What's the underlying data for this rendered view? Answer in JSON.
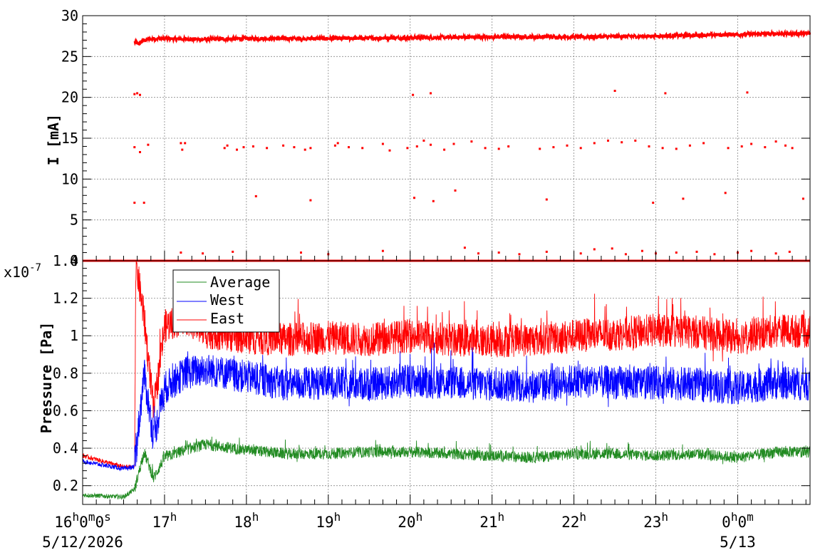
{
  "chart_data": [
    {
      "type": "scatter",
      "panel": "top",
      "title": "",
      "xlabel": "",
      "ylabel": "I [mA]",
      "ylim": [
        0,
        30
      ],
      "y_ticks": [
        0,
        5,
        10,
        15,
        20,
        25,
        30
      ],
      "xlim": [
        "16:00",
        "24:53"
      ],
      "grid": true,
      "series": [
        {
          "color": "#ff0000",
          "baseline": {
            "x": [
              "16:00",
              "24:53"
            ],
            "y": 0
          },
          "main_band": {
            "x": [
              "16:38",
              "16:41",
              "16:44",
              "16:47",
              "16:55",
              "17:30",
              "18:00",
              "19:00",
              "20:00",
              "21:00",
              "22:00",
              "23:00",
              "23:30",
              "24:00",
              "24:30",
              "24:53"
            ],
            "y": [
              26.8,
              26.5,
              26.9,
              27.1,
              27.2,
              27.1,
              27.2,
              27.2,
              27.3,
              27.4,
              27.4,
              27.5,
              27.6,
              27.7,
              27.8,
              27.8
            ]
          },
          "scattered_points": {
            "x": [
              "16:38",
              "16:40",
              "16:42",
              "16:38",
              "16:42",
              "16:48",
              "16:38",
              "16:45",
              "17:12",
              "17:13",
              "17:15",
              "17:44",
              "17:53",
              "17:46",
              "17:58",
              "18:05",
              "18:15",
              "18:27",
              "18:35",
              "18:43",
              "18:47",
              "19:05",
              "19:07",
              "19:15",
              "19:25",
              "19:40",
              "19:45",
              "19:58",
              "20:05",
              "20:10",
              "20:15",
              "20:25",
              "20:32",
              "20:45",
              "20:55",
              "21:05",
              "21:12",
              "21:35",
              "21:45",
              "21:55",
              "22:05",
              "22:15",
              "22:25",
              "22:35",
              "22:45",
              "22:55",
              "23:05",
              "23:15",
              "23:25",
              "23:35",
              "23:53",
              "24:03",
              "24:10",
              "24:20",
              "24:28",
              "24:35",
              "24:40",
              "18:07",
              "18:47",
              "20:03",
              "20:17",
              "20:33",
              "21:40",
              "22:58",
              "23:20",
              "23:51",
              "24:48",
              "20:02",
              "20:15",
              "22:30",
              "23:07",
              "24:07",
              "17:12",
              "17:28",
              "17:50",
              "18:40",
              "19:00",
              "19:40",
              "20:40",
              "20:50",
              "21:05",
              "21:20",
              "21:40",
              "22:05",
              "22:15",
              "22:28",
              "22:38",
              "22:50",
              "23:00",
              "23:15",
              "23:30",
              "23:43",
              "24:00",
              "24:10",
              "24:28",
              "24:38"
            ],
            "y": [
              20.4,
              20.5,
              20.3,
              13.9,
              13.3,
              14.2,
              7.1,
              7.1,
              14.4,
              13.6,
              14.4,
              13.8,
              13.6,
              14.1,
              13.9,
              14.0,
              13.8,
              14.1,
              13.9,
              13.6,
              13.8,
              14.1,
              14.4,
              13.9,
              13.8,
              14.3,
              13.5,
              13.8,
              14.0,
              14.7,
              14.2,
              13.6,
              14.3,
              14.6,
              13.8,
              13.7,
              14.0,
              13.7,
              13.9,
              14.1,
              13.8,
              14.4,
              14.7,
              14.5,
              14.7,
              14.0,
              13.8,
              13.7,
              14.1,
              14.4,
              13.8,
              14.0,
              14.3,
              13.9,
              14.6,
              14.1,
              13.8,
              7.9,
              7.4,
              7.7,
              7.3,
              8.6,
              7.5,
              7.1,
              7.6,
              8.3,
              7.6,
              20.3,
              20.5,
              20.8,
              20.5,
              20.6,
              1.0,
              0.9,
              1.1,
              1.0,
              0.8,
              1.2,
              1.6,
              0.9,
              1.0,
              0.8,
              1.1,
              0.9,
              1.4,
              1.5,
              0.8,
              1.2,
              0.9,
              1.0,
              1.1,
              0.8,
              1.0,
              1.2,
              0.9,
              1.1
            ]
          }
        }
      ]
    },
    {
      "type": "line",
      "panel": "bottom",
      "title": "",
      "xlabel": "",
      "ylabel": "Pressure [Pa]",
      "y_multiplier": "x10",
      "y_multiplier_exp": "-7",
      "ylim": [
        0.1,
        1.4
      ],
      "y_ticks": [
        0.2,
        0.4,
        0.6,
        0.8,
        1,
        1.2,
        1.4
      ],
      "y_tick_labels": [
        "0.2",
        "0.4",
        "0.6",
        "0.8",
        "1",
        "1.2",
        "1.4"
      ],
      "xlim": [
        "16:00",
        "24:53"
      ],
      "grid": true,
      "legend": {
        "placement": "top-left",
        "entries": [
          "Average",
          "West",
          "East"
        ]
      },
      "series": [
        {
          "name": "Average",
          "color": "#228b22",
          "x": [
            "16:00",
            "16:30",
            "16:38",
            "16:45",
            "16:52",
            "17:00",
            "17:15",
            "17:30",
            "18:00",
            "18:30",
            "19:00",
            "19:30",
            "20:00",
            "20:30",
            "21:00",
            "21:30",
            "22:00",
            "22:30",
            "23:00",
            "23:30",
            "24:00",
            "24:30",
            "24:53"
          ],
          "y": [
            0.15,
            0.14,
            0.18,
            0.38,
            0.24,
            0.35,
            0.39,
            0.42,
            0.39,
            0.37,
            0.37,
            0.38,
            0.38,
            0.37,
            0.36,
            0.35,
            0.37,
            0.37,
            0.36,
            0.37,
            0.35,
            0.38,
            0.38
          ],
          "spread": 0.03
        },
        {
          "name": "West",
          "color": "#0000ff",
          "x": [
            "16:00",
            "16:30",
            "16:38",
            "16:45",
            "16:52",
            "17:00",
            "17:15",
            "17:30",
            "18:00",
            "18:30",
            "19:00",
            "19:30",
            "20:00",
            "20:30",
            "21:00",
            "21:30",
            "22:00",
            "22:30",
            "23:00",
            "23:30",
            "24:00",
            "24:30",
            "24:53"
          ],
          "y": [
            0.33,
            0.29,
            0.3,
            0.8,
            0.45,
            0.72,
            0.8,
            0.82,
            0.78,
            0.74,
            0.75,
            0.74,
            0.76,
            0.75,
            0.74,
            0.73,
            0.76,
            0.75,
            0.75,
            0.74,
            0.72,
            0.75,
            0.74
          ],
          "spread": 0.09
        },
        {
          "name": "East",
          "color": "#ff0000",
          "x": [
            "16:00",
            "16:30",
            "16:38",
            "16:39",
            "16:45",
            "16:52",
            "17:00",
            "17:15",
            "17:30",
            "18:00",
            "18:30",
            "19:00",
            "19:30",
            "20:00",
            "20:30",
            "21:00",
            "21:30",
            "22:00",
            "22:30",
            "23:00",
            "23:30",
            "24:00",
            "24:30",
            "24:53"
          ],
          "y": [
            0.36,
            0.3,
            0.3,
            1.39,
            1.1,
            0.6,
            1.05,
            1.1,
            1.02,
            0.99,
            0.98,
            0.99,
            0.98,
            1.0,
            0.98,
            0.97,
            0.98,
            1.0,
            1.01,
            1.03,
            1.02,
            0.99,
            1.03,
            1.02
          ],
          "spread": 0.09
        }
      ]
    }
  ],
  "x_axis": {
    "tick_labels": [
      {
        "x": "16:00",
        "label": "16",
        "sup1": "h",
        "label2": "0",
        "sup2": "m",
        "label3": "0",
        "sup3": "s"
      },
      {
        "x": "17:00",
        "label": "17",
        "sup1": "h"
      },
      {
        "x": "18:00",
        "label": "18",
        "sup1": "h"
      },
      {
        "x": "19:00",
        "label": "19",
        "sup1": "h"
      },
      {
        "x": "20:00",
        "label": "20",
        "sup1": "h"
      },
      {
        "x": "21:00",
        "label": "21",
        "sup1": "h"
      },
      {
        "x": "22:00",
        "label": "22",
        "sup1": "h"
      },
      {
        "x": "23:00",
        "label": "23",
        "sup1": "h"
      },
      {
        "x": "24:00",
        "label": "0",
        "sup1": "h",
        "label2": "0",
        "sup2": "m"
      }
    ],
    "date_labels": [
      {
        "x": "16:00",
        "label": "5/12/2026"
      },
      {
        "x": "24:00",
        "label": "5/13"
      }
    ]
  }
}
